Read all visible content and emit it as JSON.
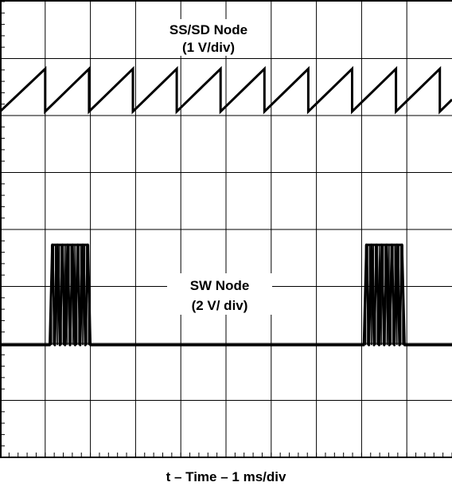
{
  "chart_data": {
    "type": "line",
    "subtype": "oscilloscope-capture",
    "title": "",
    "xlabel": "t – Time – 1 ms/div",
    "ylabel": "",
    "grid": true,
    "divisions": {
      "x": 10,
      "y": 8
    },
    "x_unit": "div",
    "y_unit": "div",
    "xlim": [
      0,
      10
    ],
    "ylim": [
      0,
      8
    ],
    "series": [
      {
        "name": "SS/SD Node",
        "scale_label": "(1 V/div)",
        "waveform": "sawtooth",
        "period_div": 0.97,
        "first_peak_div": 1.0,
        "low_div": 6.07,
        "high_div": 6.82,
        "points": [
          [
            0,
            6.07
          ],
          [
            1.0,
            6.82
          ],
          [
            1.0,
            6.07
          ],
          [
            1.97,
            6.82
          ],
          [
            1.97,
            6.07
          ],
          [
            2.94,
            6.82
          ],
          [
            2.94,
            6.07
          ],
          [
            3.91,
            6.82
          ],
          [
            3.91,
            6.07
          ],
          [
            4.88,
            6.82
          ],
          [
            4.88,
            6.07
          ],
          [
            5.85,
            6.82
          ],
          [
            5.85,
            6.07
          ],
          [
            6.82,
            6.82
          ],
          [
            6.82,
            6.07
          ],
          [
            7.79,
            6.82
          ],
          [
            7.79,
            6.07
          ],
          [
            8.76,
            6.82
          ],
          [
            8.76,
            6.07
          ],
          [
            9.73,
            6.82
          ],
          [
            9.73,
            6.07
          ],
          [
            10.0,
            6.28
          ]
        ]
      },
      {
        "name": "SW Node",
        "scale_label": "(2 V/ div)",
        "waveform": "burst",
        "baseline_div": 1.97,
        "high_div": 3.73,
        "pulses_per_burst": 8,
        "bursts": [
          {
            "start_div": 1.1,
            "end_div": 2.0
          },
          {
            "start_div": 8.05,
            "end_div": 8.95
          }
        ]
      }
    ]
  }
}
